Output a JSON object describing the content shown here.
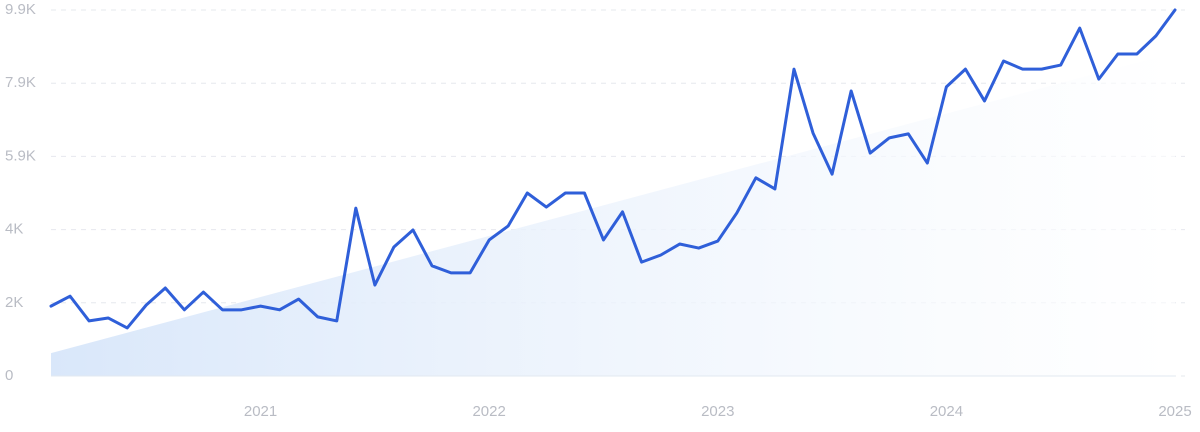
{
  "chart_data": {
    "type": "line",
    "categories": [
      null,
      null,
      null,
      null,
      null,
      null,
      null,
      null,
      null,
      null,
      null,
      "2021",
      null,
      null,
      null,
      null,
      null,
      null,
      null,
      null,
      null,
      null,
      null,
      "2022",
      null,
      null,
      null,
      null,
      null,
      null,
      null,
      null,
      null,
      null,
      null,
      "2023",
      null,
      null,
      null,
      null,
      null,
      null,
      null,
      null,
      null,
      null,
      null,
      "2024",
      null,
      null,
      null,
      null,
      null,
      null,
      null,
      null,
      null,
      null,
      null,
      "2025"
    ],
    "series": [
      {
        "color": "#2f5fd9",
        "values": [
          1890,
          2160,
          1490,
          1570,
          1300,
          1920,
          2380,
          1790,
          2270,
          1790,
          1790,
          1890,
          1790,
          2080,
          1600,
          1490,
          4540,
          2460,
          3490,
          3950,
          2980,
          2790,
          2790,
          3680,
          4060,
          4950,
          4570,
          4950,
          4950,
          3680,
          4440,
          3080,
          3270,
          3570,
          3460,
          3650,
          4410,
          5360,
          5060,
          8300,
          6570,
          5460,
          7710,
          6030,
          6440,
          6550,
          5760,
          7820,
          8300,
          7440,
          8520,
          8300,
          8300,
          8410,
          9410,
          8030,
          8710,
          8710,
          9200,
          9900
        ]
      }
    ],
    "trend": {
      "color": "#d9e7fa",
      "values": [
        620,
        8750
      ]
    },
    "ylim": [
      0,
      9900
    ],
    "yticks": [
      0,
      {
        "value": 1980,
        "label": "2K"
      },
      {
        "value": 3960,
        "label": "4K"
      },
      {
        "value": 5940,
        "label": "5.9K"
      },
      {
        "value": 7920,
        "label": "7.9K"
      },
      {
        "value": 9900,
        "label": "9.9K"
      }
    ],
    "grid": true
  }
}
